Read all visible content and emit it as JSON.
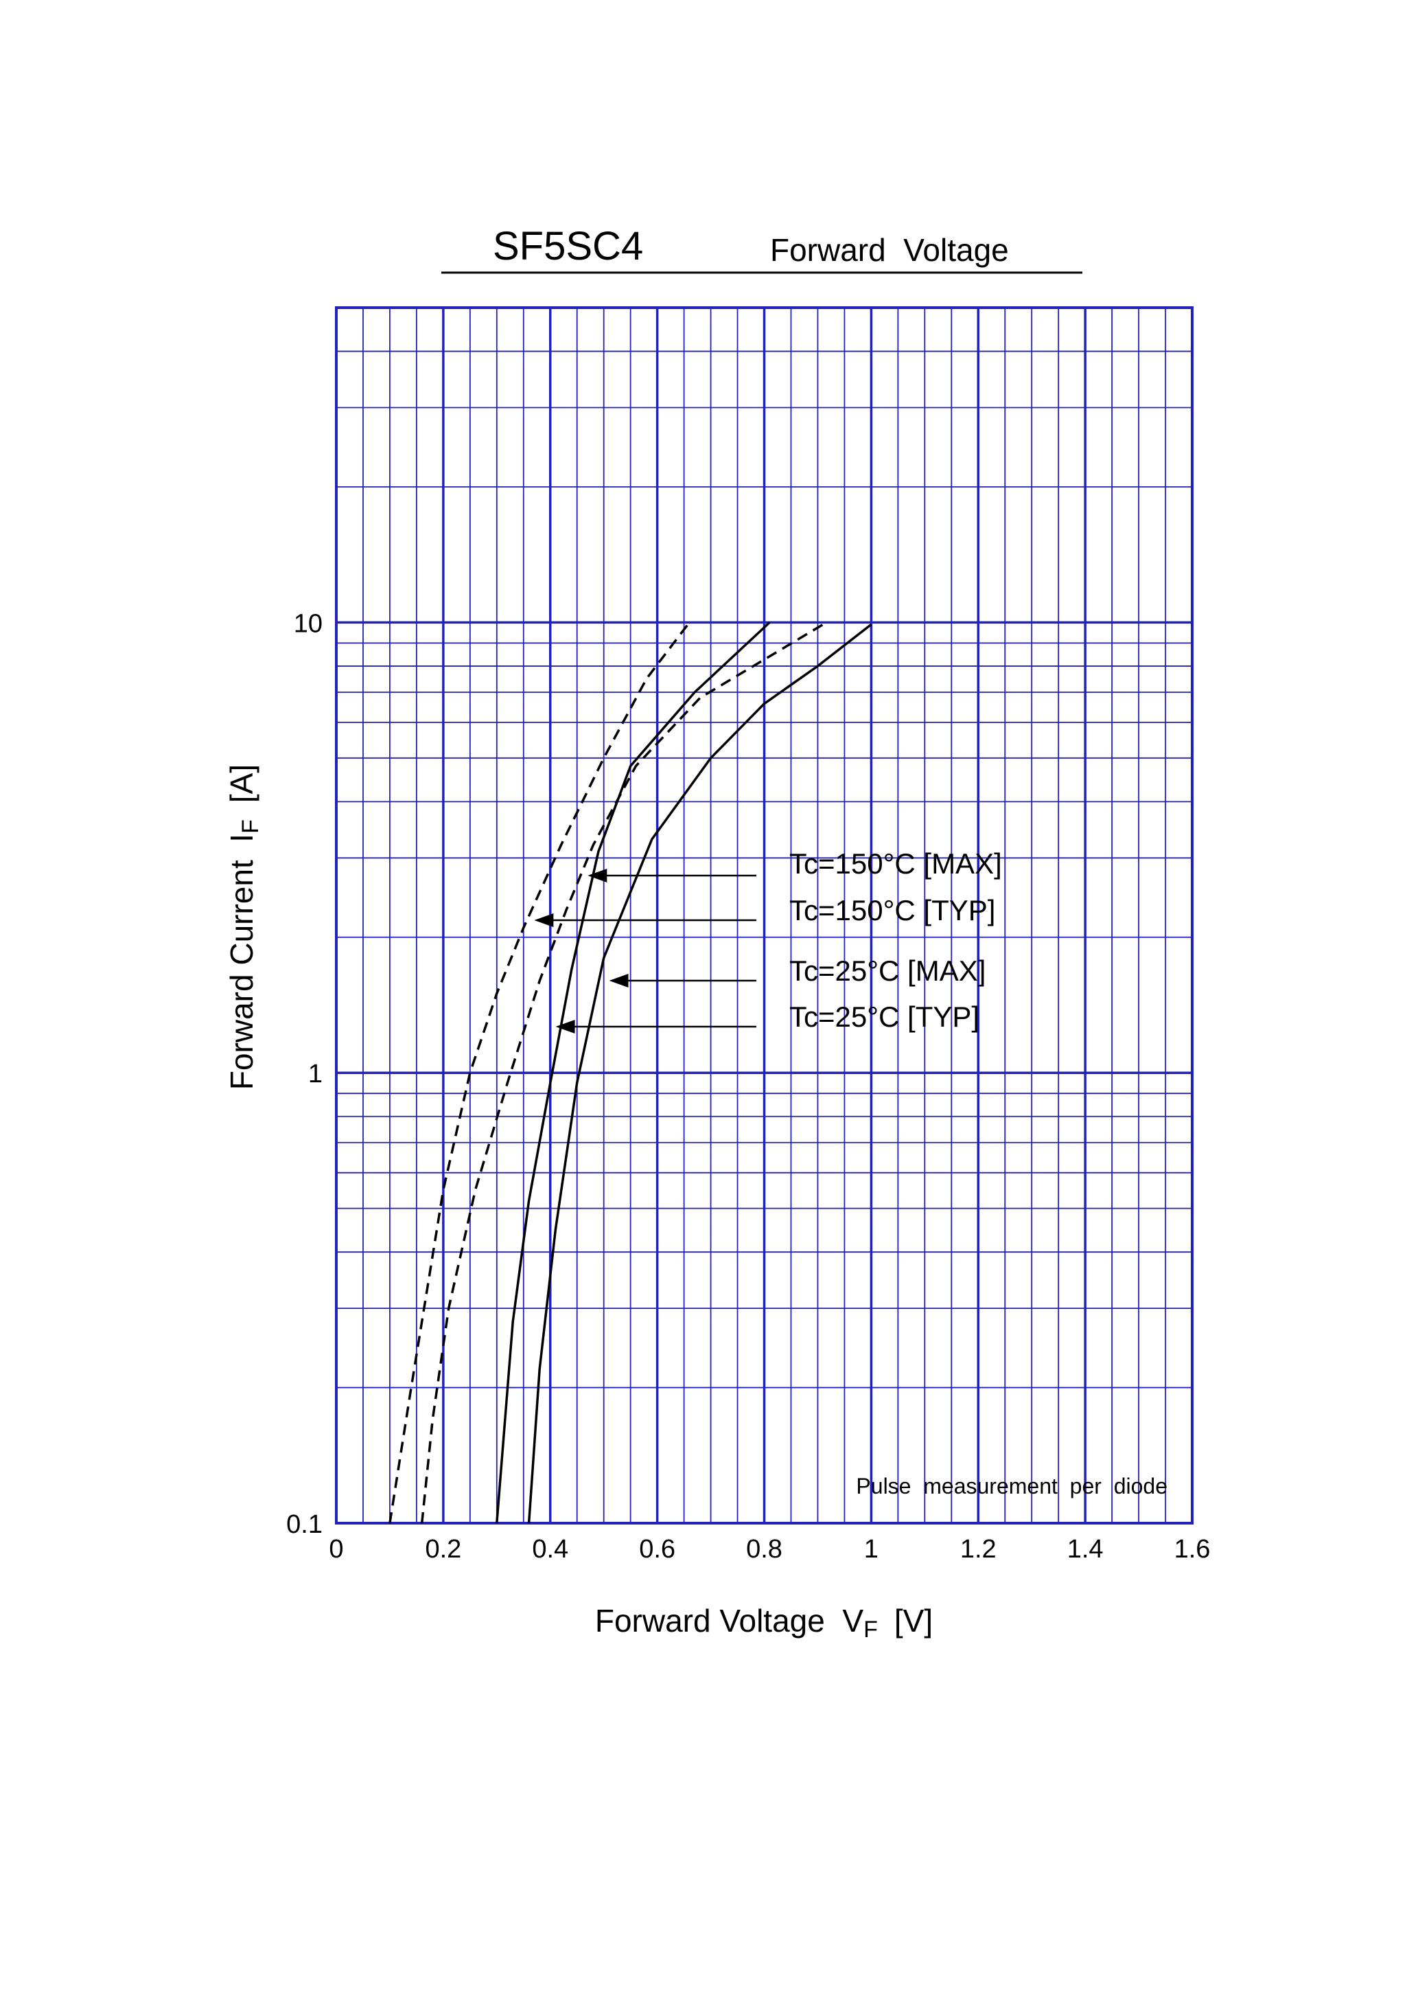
{
  "chart_data": {
    "type": "line",
    "title": "SF5SC4",
    "subtitle": "Forward  Voltage",
    "xlabel": "Forward Voltage  V",
    "xlabel_sub": "F",
    "xlabel_unit": "[V]",
    "ylabel": "Forward Current  I",
    "ylabel_sub": "F",
    "ylabel_unit": "[A]",
    "xlim": [
      0,
      1.6
    ],
    "ylim": [
      0.1,
      50
    ],
    "yscale": "log",
    "grid": true,
    "x_ticks": [
      "0",
      "0.2",
      "0.4",
      "0.6",
      "0.8",
      "1",
      "1.2",
      "1.4",
      "1.6"
    ],
    "x_tick_values": [
      0,
      0.2,
      0.4,
      0.6,
      0.8,
      1.0,
      1.2,
      1.4,
      1.6
    ],
    "y_ticks": [
      "0.1",
      "1",
      "10"
    ],
    "y_tick_values": [
      0.1,
      1,
      10
    ],
    "annotation": "Pulse  measurement  per  diode",
    "colors": {
      "grid": "#2222bb",
      "curve": "#000000",
      "background": "#ffffff"
    },
    "series": [
      {
        "name": "Tc=150°C [MAX]",
        "style": "dashed",
        "points": [
          [
            0.16,
            0.1
          ],
          [
            0.18,
            0.17
          ],
          [
            0.21,
            0.3
          ],
          [
            0.26,
            0.55
          ],
          [
            0.32,
            0.95
          ],
          [
            0.38,
            1.6
          ],
          [
            0.43,
            2.3
          ],
          [
            0.48,
            3.2
          ],
          [
            0.56,
            4.8
          ],
          [
            0.68,
            6.8
          ],
          [
            0.91,
            9.9
          ]
        ],
        "arrow_target": [
          0.47,
          2.65
        ]
      },
      {
        "name": "Tc=150°C [TYP]",
        "style": "dashed",
        "points": [
          [
            0.1,
            0.1
          ],
          [
            0.14,
            0.2
          ],
          [
            0.2,
            0.55
          ],
          [
            0.25,
            1.0
          ],
          [
            0.3,
            1.5
          ],
          [
            0.35,
            2.1
          ],
          [
            0.42,
            3.2
          ],
          [
            0.5,
            5.0
          ],
          [
            0.58,
            7.5
          ],
          [
            0.66,
            10.0
          ]
        ],
        "arrow_target": [
          0.37,
          2.1
        ]
      },
      {
        "name": "Tc=25°C [MAX]",
        "style": "solid",
        "points": [
          [
            0.36,
            0.1
          ],
          [
            0.38,
            0.22
          ],
          [
            0.41,
            0.45
          ],
          [
            0.45,
            0.95
          ],
          [
            0.5,
            1.8
          ],
          [
            0.59,
            3.3
          ],
          [
            0.7,
            5.0
          ],
          [
            0.8,
            6.6
          ],
          [
            0.9,
            8.0
          ],
          [
            1.0,
            9.9
          ]
        ],
        "arrow_target": [
          0.51,
          1.52
        ]
      },
      {
        "name": "Tc=25°C [TYP]",
        "style": "solid",
        "points": [
          [
            0.3,
            0.1
          ],
          [
            0.33,
            0.28
          ],
          [
            0.36,
            0.52
          ],
          [
            0.4,
            0.95
          ],
          [
            0.44,
            1.7
          ],
          [
            0.49,
            3.1
          ],
          [
            0.55,
            4.8
          ],
          [
            0.67,
            7.0
          ],
          [
            0.81,
            10.0
          ]
        ],
        "arrow_target": [
          0.41,
          1.2
        ]
      }
    ],
    "legend_labels": [
      "Tc=150°C [MAX]",
      "Tc=150°C [TYP]",
      "Tc=25°C [MAX]",
      "Tc=25°C [TYP]"
    ]
  }
}
